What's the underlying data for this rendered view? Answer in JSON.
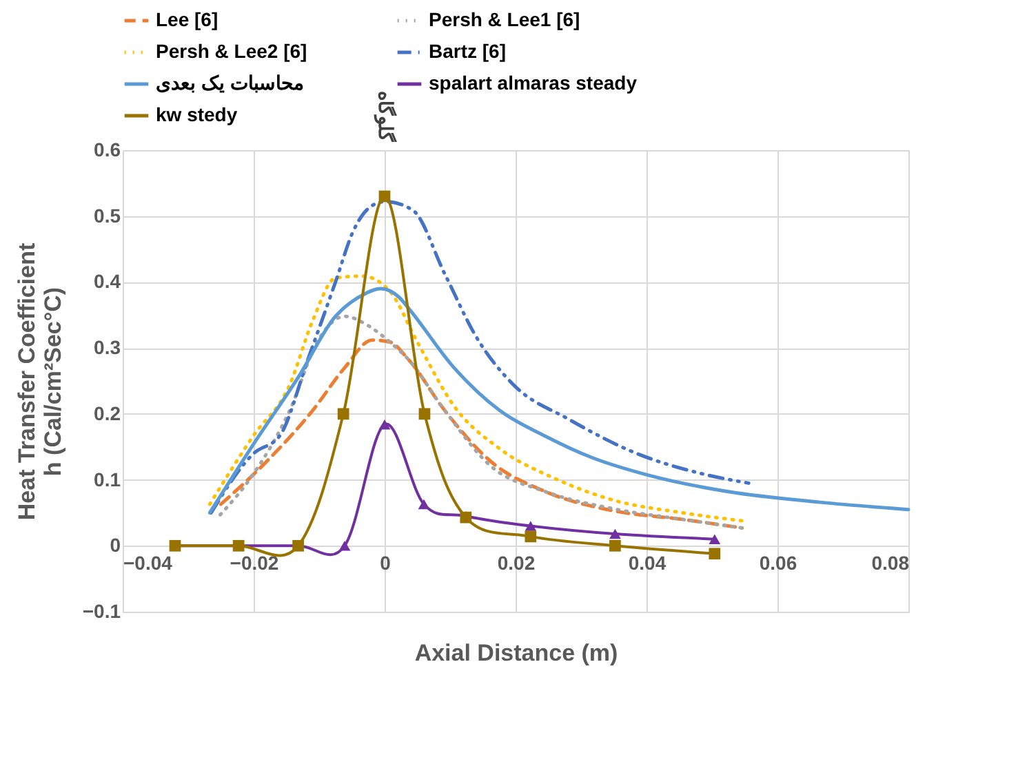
{
  "chart_data": {
    "type": "line",
    "xlabel": "Axial Distance (m)",
    "ylabel": "Heat Transfer Coefficient\nh (Cal/cm²Sec°C)",
    "xlim": [
      -0.04,
      0.08
    ],
    "xticks": [
      -0.04,
      -0.02,
      0,
      0.02,
      0.04,
      0.06,
      0.08
    ],
    "ylim": [
      -0.1,
      0.6
    ],
    "yticks": [
      -0.1,
      0,
      0.1,
      0.2,
      0.3,
      0.4,
      0.5,
      0.6
    ],
    "grid": true,
    "legend": "top",
    "annotations": [
      "گلوگاه"
    ],
    "series": [
      {
        "name": "Lee [6]",
        "color": "#ed7d31",
        "line_style": "dashed",
        "x": [
          -0.025,
          -0.018,
          -0.011,
          -0.0061,
          -0.0019,
          0.0008,
          0.0036,
          0.0092,
          0.0162,
          0.0246,
          0.035,
          0.0455,
          0.0546
        ],
        "values": [
          0.063,
          0.128,
          0.205,
          0.27,
          0.312,
          0.309,
          0.283,
          0.205,
          0.128,
          0.082,
          0.053,
          0.04,
          0.027
        ]
      },
      {
        "name": "Persh & Lee1 [6]",
        "color": "#a5a5a5",
        "line_style": "dotted",
        "x": [
          -0.0251,
          -0.0201,
          -0.0145,
          -0.0103,
          -0.0061,
          -0.0027,
          0.0008,
          0.0036,
          0.0092,
          0.0162,
          0.0246,
          0.035,
          0.0455,
          0.0546
        ],
        "values": [
          0.047,
          0.108,
          0.205,
          0.309,
          0.348,
          0.335,
          0.309,
          0.283,
          0.205,
          0.121,
          0.082,
          0.056,
          0.04,
          0.027
        ]
      },
      {
        "name": "Persh & Lee2 [6]",
        "color": "#ffc000",
        "line_style": "dotted",
        "x": [
          -0.0267,
          -0.0201,
          -0.0145,
          -0.011,
          -0.0075,
          -0.0034,
          0.0008,
          0.005,
          0.0106,
          0.0176,
          0.026,
          0.035,
          0.0455,
          0.0553
        ],
        "values": [
          0.063,
          0.166,
          0.244,
          0.341,
          0.406,
          0.409,
          0.386,
          0.309,
          0.212,
          0.147,
          0.102,
          0.069,
          0.05,
          0.037
        ]
      },
      {
        "name": "Bartz [6]",
        "color": "#4472c4",
        "line_style": "dashdot",
        "x": [
          -0.0265,
          -0.02,
          -0.016,
          -0.0117,
          -0.0075,
          -0.0048,
          -0.0019,
          0.0001,
          0.0043,
          0.0092,
          0.0141,
          0.0197,
          0.0281,
          0.0385,
          0.049,
          0.0556
        ],
        "values": [
          0.05,
          0.14,
          0.167,
          0.283,
          0.4,
          0.477,
          0.516,
          0.522,
          0.509,
          0.412,
          0.315,
          0.244,
          0.192,
          0.14,
          0.108,
          0.095
        ]
      },
      {
        "name": "محاسبات یک بعدی",
        "color": "#5b9bd5",
        "line_style": "solid",
        "x": [
          -0.0267,
          -0.0201,
          -0.0131,
          -0.0075,
          -0.0034,
          -0.0006,
          0.0022,
          0.0036,
          0.0106,
          0.0176,
          0.0246,
          0.0316,
          0.0399,
          0.0525,
          0.0665,
          0.08
        ],
        "values": [
          0.05,
          0.153,
          0.257,
          0.348,
          0.38,
          0.39,
          0.377,
          0.361,
          0.27,
          0.205,
          0.166,
          0.134,
          0.108,
          0.082,
          0.066,
          0.055
        ]
      },
      {
        "name": "spalart almaras steady",
        "color": "#7030a0",
        "line_style": "solid",
        "marker": "triangle",
        "x": [
          -0.032,
          -0.0223,
          -0.0132,
          -0.0061,
          0,
          0.006,
          0.0124,
          0.0223,
          0.0352,
          0.0504
        ],
        "values": [
          0,
          0,
          0,
          0,
          0.184,
          0.063,
          0.045,
          0.03,
          0.018,
          0.01
        ]
      },
      {
        "name": "kw stedy",
        "color": "#997300",
        "line_style": "solid",
        "marker": "square",
        "x": [
          -0.032,
          -0.0223,
          -0.0132,
          -0.0063,
          0,
          0.0061,
          0.0124,
          0.0223,
          0.0352,
          0.0504
        ],
        "values": [
          0,
          0,
          0,
          0.2,
          0.53,
          0.2,
          0.043,
          0.014,
          0,
          -0.012
        ]
      }
    ]
  }
}
